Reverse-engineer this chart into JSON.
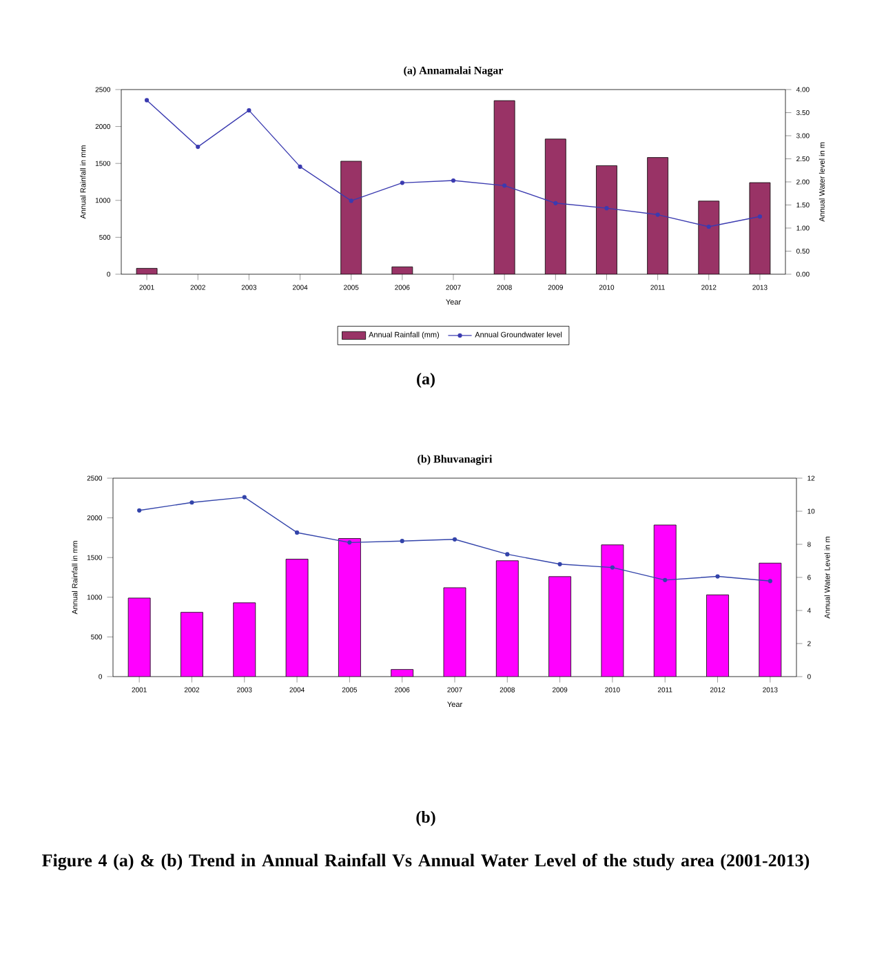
{
  "chart_data": [
    {
      "type": "bar",
      "title": "(a)  Annamalai Nagar",
      "xlabel": "Year",
      "ylabel": "Annual Rainfall in mm",
      "y2label": "Annual Water level in m",
      "categories": [
        "2001",
        "2002",
        "2003",
        "2004",
        "2005",
        "2006",
        "2007",
        "2008",
        "2009",
        "2010",
        "2011",
        "2012",
        "2013"
      ],
      "series": [
        {
          "name": "Annual Rainfall  (mm)",
          "color": "#993366",
          "values": [
            80,
            null,
            null,
            null,
            1530,
            100,
            null,
            2350,
            1830,
            1470,
            1580,
            990,
            1240
          ]
        },
        {
          "name": "Annual Groundwater level",
          "type": "line",
          "axis": "y2",
          "color": "#3b3bb0",
          "values": [
            3.77,
            2.76,
            3.55,
            2.33,
            1.59,
            1.98,
            2.03,
            1.92,
            1.54,
            1.43,
            1.29,
            1.03,
            1.25
          ]
        }
      ],
      "ylim": [
        0,
        2500
      ],
      "yticks": [
        0,
        500,
        1000,
        1500,
        2000,
        2500
      ],
      "y2lim": [
        0,
        4
      ],
      "y2ticks": [
        {
          "value": 0,
          "label": "0.00"
        },
        {
          "value": 0.5,
          "label": "0.50"
        },
        {
          "value": 1,
          "label": "1.00"
        },
        {
          "value": 1.5,
          "label": "1.50"
        },
        {
          "value": 2,
          "label": "2.00"
        },
        {
          "value": 2.5,
          "label": "2.50"
        },
        {
          "value": 3,
          "label": "3.00"
        },
        {
          "value": 3.5,
          "label": "3.50"
        },
        {
          "value": 4,
          "label": "4.00"
        }
      ],
      "legend": "bottom",
      "marker": "circle",
      "annotations": [
        "(a)"
      ]
    },
    {
      "type": "bar",
      "title": "(b)  Bhuvanagiri",
      "xlabel": "Year",
      "ylabel": "Annual Rainfall in mm",
      "y2label": "Annual Water Level in m",
      "categories": [
        "2001",
        "2002",
        "2003",
        "2004",
        "2005",
        "2006",
        "2007",
        "2008",
        "2009",
        "2010",
        "2011",
        "2012",
        "2013"
      ],
      "series": [
        {
          "color": "#ff00ff",
          "values": [
            990,
            810,
            930,
            1480,
            1740,
            90,
            1120,
            1460,
            1260,
            1660,
            1910,
            1030,
            1430
          ]
        },
        {
          "type": "line",
          "axis": "y2",
          "color": "#3344aa",
          "values": [
            10.05,
            10.53,
            10.85,
            8.71,
            8.11,
            8.2,
            8.3,
            7.4,
            6.8,
            6.6,
            5.84,
            6.06,
            5.78
          ]
        }
      ],
      "ylim": [
        0,
        2500
      ],
      "yticks": [
        0,
        500,
        1000,
        1500,
        2000,
        2500
      ],
      "y2lim": [
        0,
        12
      ],
      "y2ticks": [
        0,
        2,
        4,
        6,
        8,
        10,
        12
      ],
      "marker": "circle",
      "annotations": [
        "(b)",
        "Figure 4 (a) & (b)  Trend in Annual Rainfall Vs Annual Water Level of the study area (2001-2013)"
      ]
    }
  ]
}
